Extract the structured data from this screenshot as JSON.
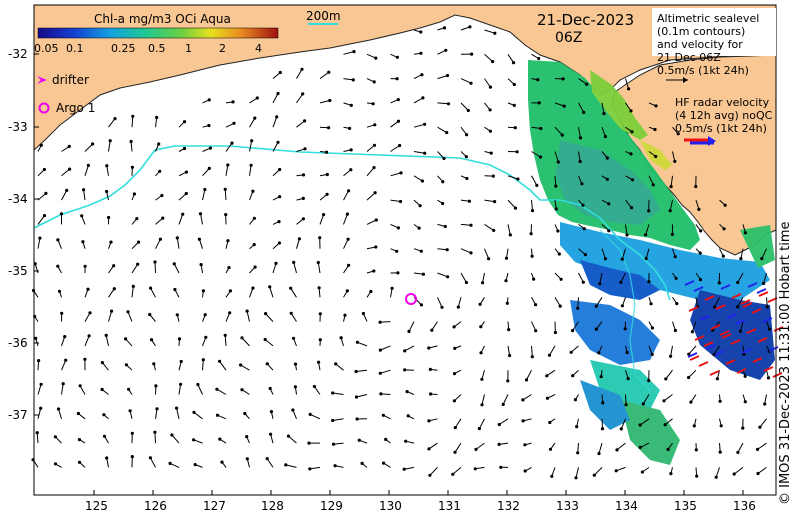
{
  "colorbar": {
    "title": "Chl-a mg/m3 OCi Aqua",
    "ticks": [
      "0.05",
      "0.1",
      "0.25",
      "0.5",
      "1",
      "2",
      "4"
    ]
  },
  "scale_label": "200m",
  "date": "21-Dec-2023",
  "time": "06Z",
  "legend_altimetry": {
    "lines": [
      "Altimetric sealevel",
      "(0.1m contours)",
      "and velocity for",
      "21 Dec 06Z",
      "0.5m/s (1kt 24h)"
    ]
  },
  "legend_hf": {
    "lines": [
      "HF radar velocity",
      "(4 12h avg) noQC",
      "0.5m/s (1kt 24h)"
    ]
  },
  "left_legend": {
    "drifter": "drifter",
    "argo": "Argo 1"
  },
  "y_ticks": [
    "-32",
    "-33",
    "-34",
    "-35",
    "-36",
    "-37"
  ],
  "x_ticks": [
    "125",
    "126",
    "127",
    "128",
    "129",
    "130",
    "131",
    "132",
    "133",
    "134",
    "135",
    "136"
  ],
  "credit": "© IMOS 31-Dec-2023 11:31:00 Hobart time",
  "colors": {
    "land": "#f9c793",
    "bathy_contour": "#33dddd",
    "argo_marker": "#ee00ee",
    "hf_arrow_red": "#ee1111",
    "hf_arrow_blue": "#2222ee"
  }
}
